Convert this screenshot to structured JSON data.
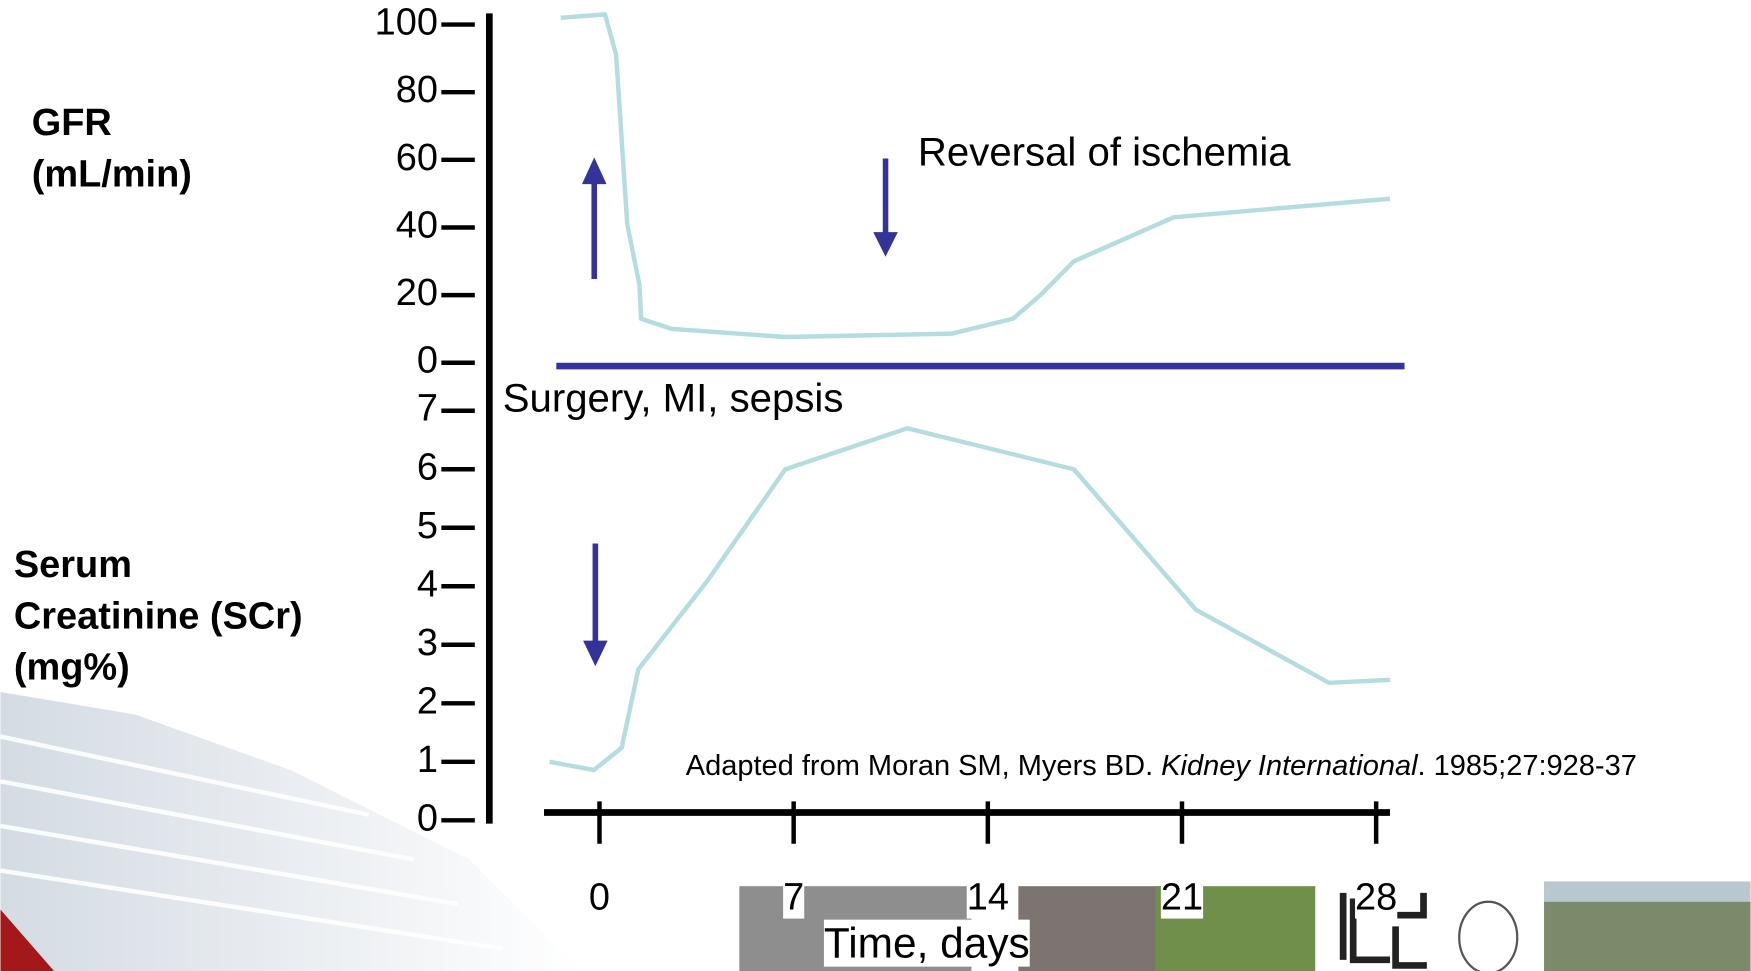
{
  "chart_data": [
    {
      "type": "line",
      "y_label": [
        "GFR",
        "(mL/min)"
      ],
      "x": [
        -1.4,
        0.2,
        0.6,
        1.0,
        1.44,
        1.5,
        2.6,
        6.7,
        12.7,
        14.9,
        15.9,
        17.1,
        20.7,
        28.5
      ],
      "series": [
        {
          "name": "GFR",
          "color": "#b5dde0",
          "values": [
            102,
            103,
            91,
            41,
            23,
            13,
            10,
            7.6,
            8.6,
            13,
            20,
            30,
            43,
            48.5
          ]
        }
      ],
      "xlim": [
        -2,
        28.5
      ],
      "ylim": [
        0,
        100
      ],
      "yticks": [
        0,
        20,
        40,
        60,
        80,
        100
      ],
      "annotations": [
        "Reversal of ischemia"
      ]
    },
    {
      "type": "line",
      "y_label": [
        "Serum",
        "Creatinine (SCr)",
        "(mg%)"
      ],
      "x_label": "Time, days",
      "x": [
        -1.8,
        -0.2,
        0.8,
        1.4,
        3.9,
        6.7,
        11.1,
        17.1,
        21.5,
        26.3,
        28.5
      ],
      "series": [
        {
          "name": "SCr",
          "color": "#b5dde0",
          "values": [
            1.0,
            0.86,
            1.24,
            2.58,
            4.1,
            6.0,
            6.7,
            6.0,
            3.6,
            2.35,
            2.4
          ]
        }
      ],
      "xlim": [
        -2,
        28.5
      ],
      "xticks": [
        0,
        7,
        14,
        21,
        28
      ],
      "ylim": [
        0,
        7
      ],
      "yticks": [
        0,
        1,
        2,
        3,
        4,
        5,
        6,
        7
      ],
      "annotations": [
        "Surgery, MI, sepsis"
      ]
    }
  ],
  "citation": {
    "before": "Adapted from Moran SM, Myers BD. ",
    "journal": "Kidney International",
    "after": ". 1985;27:928-37"
  }
}
